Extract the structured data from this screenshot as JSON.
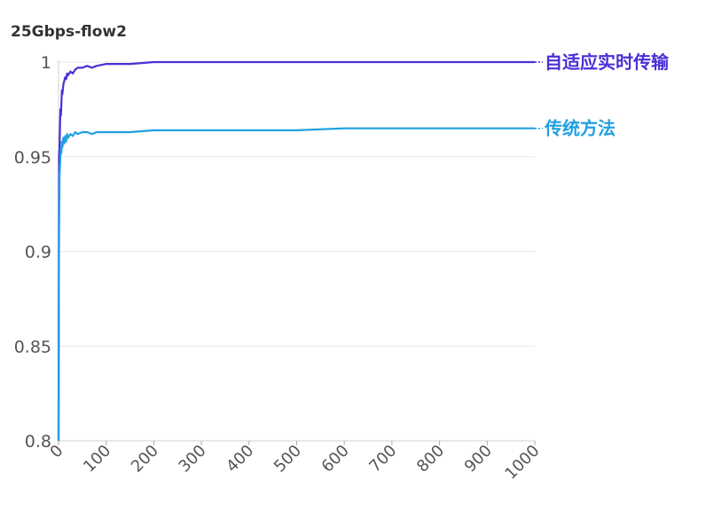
{
  "chart_data": {
    "type": "line",
    "title": "25Gbps-flow2",
    "xlabel": "",
    "ylabel": "",
    "xlim": [
      0,
      1000
    ],
    "ylim": [
      0.8,
      1
    ],
    "xticks": [
      0,
      100,
      200,
      300,
      400,
      500,
      600,
      700,
      800,
      900,
      1000
    ],
    "yticks": [
      0.8,
      0.85,
      0.9,
      0.95,
      1
    ],
    "ytick_labels": [
      "0.8",
      "0.85",
      "0.9",
      "0.95",
      "1"
    ],
    "grid": "horizontal",
    "legend": "inline-right",
    "series": [
      {
        "name": "自适应实时传输",
        "color": "#4a2fd6",
        "x": [
          0,
          1,
          2,
          3,
          4,
          5,
          6,
          7,
          8,
          10,
          12,
          14,
          16,
          18,
          20,
          25,
          30,
          35,
          40,
          50,
          60,
          70,
          80,
          100,
          150,
          200,
          300,
          400,
          500,
          600,
          700,
          800,
          900,
          1000
        ],
        "y": [
          0.8,
          0.95,
          0.955,
          0.965,
          0.975,
          0.972,
          0.978,
          0.985,
          0.983,
          0.988,
          0.99,
          0.992,
          0.991,
          0.994,
          0.993,
          0.995,
          0.994,
          0.996,
          0.997,
          0.997,
          0.998,
          0.997,
          0.998,
          0.999,
          0.999,
          1.0,
          1.0,
          1.0,
          1.0,
          1.0,
          1.0,
          1.0,
          1.0,
          1.0
        ]
      },
      {
        "name": "传统方法",
        "color": "#1fa0e0",
        "x": [
          0,
          1,
          2,
          3,
          4,
          5,
          6,
          7,
          8,
          10,
          12,
          14,
          16,
          18,
          20,
          25,
          30,
          35,
          40,
          50,
          60,
          70,
          80,
          100,
          150,
          200,
          300,
          400,
          500,
          600,
          700,
          800,
          900,
          1000
        ],
        "y": [
          0.8,
          0.9,
          0.94,
          0.945,
          0.95,
          0.955,
          0.952,
          0.958,
          0.955,
          0.96,
          0.957,
          0.961,
          0.958,
          0.962,
          0.96,
          0.962,
          0.961,
          0.963,
          0.962,
          0.963,
          0.963,
          0.962,
          0.963,
          0.963,
          0.963,
          0.964,
          0.964,
          0.964,
          0.964,
          0.965,
          0.965,
          0.965,
          0.965,
          0.965
        ]
      }
    ]
  }
}
